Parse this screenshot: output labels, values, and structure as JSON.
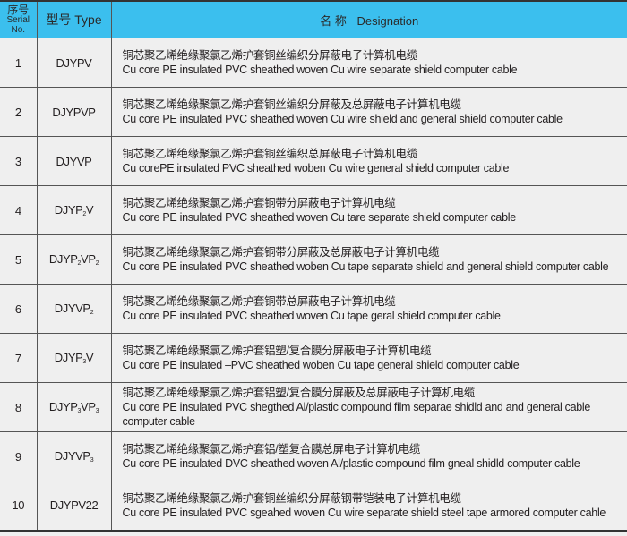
{
  "header": {
    "serial_cn": "序号",
    "serial_en": "Serial",
    "serial_en2": "No.",
    "type_label": "型号 Type",
    "name_cn": "名 称",
    "name_en": "Designation"
  },
  "colors": {
    "header_bg": "#3bbfee",
    "body_bg": "#efefef"
  },
  "rows": [
    {
      "no": "1",
      "type": [
        {
          "t": "DJYPV"
        }
      ],
      "cn": "铜芯聚乙烯绝缘聚氯乙烯护套铜丝编织分屏蔽电子计算机电缆",
      "en": "Cu core PE insulated PVC sheathed woven Cu wire separate shield computer cable"
    },
    {
      "no": "2",
      "type": [
        {
          "t": "DJYPVP"
        }
      ],
      "cn": "铜芯聚乙烯绝缘聚氯乙烯护套铜丝编织分屏蔽及总屏蔽电子计算机电缆",
      "en": "Cu core PE insulated PVC sheathed woven Cu wire shield and general shield computer cable"
    },
    {
      "no": "3",
      "type": [
        {
          "t": "DJYVP"
        }
      ],
      "cn": "铜芯聚乙烯绝缘聚氯乙烯护套铜丝编织总屏蔽电子计算机电缆",
      "en": "Cu corePE insulated PVC sheathed woben Cu wire general shield computer cable"
    },
    {
      "no": "4",
      "type": [
        {
          "t": "DJYP"
        },
        {
          "sub": "2"
        },
        {
          "t": "V"
        }
      ],
      "cn": "铜芯聚乙烯绝缘聚氯乙烯护套铜带分屏蔽电子计算机电缆",
      "en": "Cu core PE insulated PVC sheathed woven Cu tare separate shield computer cable"
    },
    {
      "no": "5",
      "type": [
        {
          "t": "DJYP"
        },
        {
          "sub": "2"
        },
        {
          "t": "VP"
        },
        {
          "sub": "2"
        }
      ],
      "cn": "铜芯聚乙烯绝缘聚氯乙烯护套铜带分屏蔽及总屏蔽电子计算机电缆",
      "en": "Cu core PE insulated PVC sheathed woben Cu tape separate shield and general shield computer cable"
    },
    {
      "no": "6",
      "type": [
        {
          "t": "DJYVP"
        },
        {
          "sub": "2"
        }
      ],
      "cn": "铜芯聚乙烯绝缘聚氯乙烯护套铜带总屏蔽电子计算机电缆",
      "en": "Cu core PE insulated PVC sheathed woven Cu tape geral shield computer cable"
    },
    {
      "no": "7",
      "type": [
        {
          "t": "DJYP"
        },
        {
          "sub": "3"
        },
        {
          "t": "V"
        }
      ],
      "cn": "铜芯聚乙烯绝缘聚氯乙烯护套铝塑/复合膜分屏蔽电子计算机电缆",
      "en": "Cu core PE insulated –PVC sheathed woben Cu tape general shield computer cable"
    },
    {
      "no": "8",
      "type": [
        {
          "t": "DJYP"
        },
        {
          "sub": "3"
        },
        {
          "t": "VP"
        },
        {
          "sub": "3"
        }
      ],
      "cn": "铜芯聚乙烯绝缘聚氯乙烯护套铝塑/复合膜分屏蔽及总屏蔽电子计算机电缆",
      "en": "Cu core PE insulated PVC shegthed Al/plastic compound film separae shidld and and general cable computer cable"
    },
    {
      "no": "9",
      "type": [
        {
          "t": "DJYVP"
        },
        {
          "sub": "3"
        }
      ],
      "cn": "铜芯聚乙烯绝缘聚氯乙烯护套铝/塑复合膜总屏电子计算机电缆",
      "en": "Cu core PE insulated DVC sheathed woven Al/plastic compound film gneal shidld computer cable"
    },
    {
      "no": "10",
      "type": [
        {
          "t": "DJYPV22"
        }
      ],
      "cn": "铜芯聚乙烯绝缘聚氯乙烯护套铜丝编织分屏蔽钢带铠装电子计算机电缆",
      "en": "Cu core PE  insulated  PVC sgeahed woven Cu wire separate shield steel tape armored computer cahle"
    }
  ]
}
